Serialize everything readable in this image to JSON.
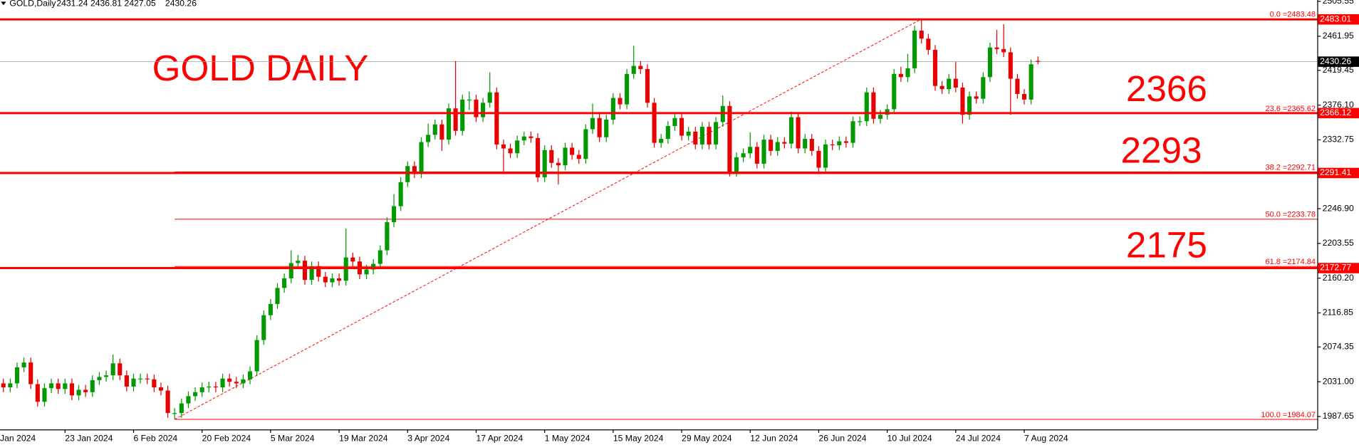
{
  "chart_data": {
    "type": "candlestick",
    "symbol": "GOLD,Daily",
    "categories": [
      "Jan 2024",
      null,
      null,
      null,
      null,
      null,
      null,
      null,
      null,
      null,
      "23 Jan 2024",
      null,
      null,
      null,
      null,
      null,
      null,
      null,
      null,
      null,
      "6 Feb 2024",
      null,
      null,
      null,
      null,
      null,
      null,
      null,
      null,
      null,
      "20 Feb 2024",
      null,
      null,
      null,
      null,
      null,
      null,
      null,
      null,
      null,
      "5 Mar 2024",
      null,
      null,
      null,
      null,
      null,
      null,
      null,
      null,
      null,
      "19 Mar 2024",
      null,
      null,
      null,
      null,
      null,
      null,
      null,
      null,
      null,
      "3 Apr 2024",
      null,
      null,
      null,
      null,
      null,
      null,
      null,
      null,
      null,
      "17 Apr 2024",
      null,
      null,
      null,
      null,
      null,
      null,
      null,
      null,
      null,
      "1 May 2024",
      null,
      null,
      null,
      null,
      null,
      null,
      null,
      null,
      null,
      "15 May 2024",
      null,
      null,
      null,
      null,
      null,
      null,
      null,
      null,
      null,
      "29 May 2024",
      null,
      null,
      null,
      null,
      null,
      null,
      null,
      null,
      null,
      "12 Jun 2024",
      null,
      null,
      null,
      null,
      null,
      null,
      null,
      null,
      null,
      "26 Jun 2024",
      null,
      null,
      null,
      null,
      null,
      null,
      null,
      null,
      null,
      "10 Jul 2024",
      null,
      null,
      null,
      null,
      null,
      null,
      null,
      null,
      null,
      "24 Jul 2024",
      null,
      null,
      null,
      null,
      null,
      null,
      null,
      null,
      null,
      "7 Aug 2024",
      null,
      null
    ],
    "open": [
      2028,
      2029,
      2024,
      2029,
      2049,
      2055,
      2028,
      2006,
      2023,
      2029,
      2022,
      2029,
      2014,
      2021,
      2018,
      2033,
      2037,
      2039,
      2054,
      2039,
      2025,
      2035,
      2035,
      2034,
      2024,
      2020,
      1992,
      1992,
      2004,
      2013,
      2018,
      2024,
      2025,
      2024,
      2035,
      2031,
      2029,
      2034,
      2044,
      2083,
      2114,
      2128,
      2148,
      2160,
      2179,
      2182,
      2158,
      2175,
      2162,
      2155,
      2160,
      2157,
      2186,
      2181,
      2165,
      2171,
      2178,
      2195,
      2230,
      2250,
      2280,
      2300,
      2291,
      2330,
      2339,
      2352,
      2333,
      2372,
      2344,
      2383,
      2383,
      2361,
      2379,
      2392,
      2327,
      2322,
      2316,
      2332,
      2337,
      2335,
      2286,
      2320,
      2304,
      2301,
      2323,
      2314,
      2309,
      2346,
      2360,
      2336,
      2358,
      2385,
      2377,
      2415,
      2425,
      2421,
      2379,
      2329,
      2334,
      2350,
      2360,
      2338,
      2343,
      2327,
      2349,
      2327,
      2355,
      2375,
      2293,
      2311,
      2316,
      2324,
      2303,
      2333,
      2319,
      2330,
      2328,
      2361,
      2322,
      2334,
      2319,
      2298,
      2327,
      2326,
      2331,
      2329,
      2356,
      2356,
      2392,
      2359,
      2364,
      2371,
      2415,
      2411,
      2422,
      2469,
      2459,
      2445,
      2400,
      2396,
      2409,
      2398,
      2364,
      2387,
      2384,
      2411,
      2448,
      2446,
      2442,
      2409,
      2390,
      2383,
      2431.24
    ],
    "high": [
      2035,
      2035,
      2035,
      2055,
      2061,
      2061,
      2034,
      2029,
      2035,
      2035,
      2035,
      2035,
      2027,
      2027,
      2039,
      2043,
      2045,
      2065,
      2060,
      2045,
      2041,
      2041,
      2041,
      2040,
      2030,
      2026,
      1998,
      2010,
      2019,
      2024,
      2030,
      2031,
      2031,
      2041,
      2041,
      2037,
      2040,
      2050,
      2089,
      2120,
      2134,
      2154,
      2166,
      2195,
      2189,
      2188,
      2181,
      2181,
      2168,
      2166,
      2166,
      2222,
      2192,
      2187,
      2177,
      2184,
      2201,
      2236,
      2265,
      2286,
      2306,
      2306,
      2336,
      2353,
      2358,
      2358,
      2378,
      2431,
      2389,
      2393,
      2389,
      2385,
      2417,
      2398,
      2333,
      2328,
      2338,
      2343,
      2343,
      2341,
      2326,
      2326,
      2310,
      2329,
      2329,
      2320,
      2352,
      2378,
      2366,
      2364,
      2391,
      2391,
      2421,
      2450,
      2431,
      2427,
      2385,
      2340,
      2356,
      2366,
      2366,
      2349,
      2349,
      2355,
      2355,
      2361,
      2388,
      2381,
      2317,
      2322,
      2342,
      2330,
      2339,
      2339,
      2336,
      2336,
      2368,
      2367,
      2340,
      2340,
      2325,
      2333,
      2333,
      2337,
      2337,
      2362,
      2362,
      2398,
      2398,
      2370,
      2377,
      2421,
      2424,
      2440,
      2475,
      2483.48,
      2465,
      2451,
      2406,
      2415,
      2430,
      2404,
      2393,
      2393,
      2417,
      2454,
      2470,
      2477,
      2448,
      2415,
      2396,
      2433,
      2436.81
    ],
    "low": [
      2022,
      2018,
      2018,
      2023,
      2043,
      2022,
      2000,
      2000,
      2017,
      2016,
      2016,
      2008,
      2008,
      2012,
      2012,
      2027,
      2031,
      2033,
      2033,
      2019,
      2019,
      2029,
      2028,
      2018,
      2014,
      1986,
      1984.07,
      1986,
      1998,
      2007,
      2012,
      2018,
      2018,
      2018,
      2025,
      2023,
      2023,
      2028,
      2038,
      2077,
      2108,
      2122,
      2142,
      2154,
      2173,
      2152,
      2152,
      2156,
      2149,
      2149,
      2151,
      2151,
      2175,
      2159,
      2159,
      2165,
      2172,
      2189,
      2224,
      2244,
      2274,
      2285,
      2285,
      2324,
      2333,
      2319,
      2327,
      2338,
      2338,
      2370,
      2355,
      2355,
      2373,
      2321,
      2292,
      2310,
      2310,
      2326,
      2329,
      2280,
      2280,
      2298,
      2277,
      2295,
      2308,
      2303,
      2303,
      2340,
      2330,
      2330,
      2352,
      2371,
      2371,
      2409,
      2415,
      2373,
      2323,
      2323,
      2328,
      2344,
      2332,
      2332,
      2321,
      2321,
      2321,
      2321,
      2349,
      2287,
      2287,
      2305,
      2310,
      2297,
      2297,
      2313,
      2313,
      2322,
      2322,
      2316,
      2316,
      2313,
      2292,
      2292,
      2320,
      2320,
      2323,
      2323,
      2350,
      2350,
      2353,
      2353,
      2358,
      2365,
      2405,
      2405,
      2416,
      2453,
      2439,
      2394,
      2390,
      2390,
      2392,
      2353,
      2358,
      2378,
      2378,
      2405,
      2440,
      2436,
      2364,
      2384,
      2377,
      2377,
      2427.05
    ],
    "close": [
      2029,
      2024,
      2029,
      2049,
      2055,
      2028,
      2006,
      2023,
      2029,
      2022,
      2029,
      2014,
      2021,
      2018,
      2033,
      2037,
      2039,
      2054,
      2039,
      2025,
      2035,
      2035,
      2034,
      2024,
      2020,
      1992,
      1992,
      2004,
      2013,
      2018,
      2024,
      2025,
      2024,
      2035,
      2031,
      2029,
      2034,
      2044,
      2083,
      2114,
      2128,
      2148,
      2160,
      2179,
      2182,
      2158,
      2175,
      2162,
      2155,
      2160,
      2157,
      2186,
      2181,
      2165,
      2171,
      2178,
      2195,
      2230,
      2250,
      2280,
      2300,
      2291,
      2330,
      2339,
      2352,
      2333,
      2372,
      2344,
      2383,
      2383,
      2361,
      2379,
      2392,
      2327,
      2322,
      2316,
      2332,
      2337,
      2335,
      2286,
      2320,
      2304,
      2301,
      2323,
      2314,
      2309,
      2346,
      2360,
      2336,
      2358,
      2385,
      2377,
      2415,
      2425,
      2421,
      2379,
      2329,
      2334,
      2350,
      2360,
      2338,
      2343,
      2327,
      2349,
      2327,
      2355,
      2375,
      2293,
      2311,
      2316,
      2324,
      2303,
      2333,
      2319,
      2330,
      2328,
      2361,
      2322,
      2334,
      2319,
      2298,
      2327,
      2326,
      2331,
      2329,
      2356,
      2356,
      2392,
      2359,
      2364,
      2371,
      2415,
      2411,
      2422,
      2469,
      2459,
      2445,
      2400,
      2396,
      2409,
      2398,
      2364,
      2387,
      2384,
      2411,
      2448,
      2446,
      2442,
      2409,
      2390,
      2383,
      2427,
      2430.26
    ],
    "up_color": "#009900",
    "down_color": "#e60000",
    "level_color": "#ff0000",
    "ylim": [
      1971.5,
      2507.2
    ],
    "yticks": [
      1987.65,
      {
        "value": 2031,
        "label": "2031.00"
      },
      2074.35,
      2116.85,
      {
        "value": 2160.2,
        "label": "2160.20"
      },
      2203.55,
      {
        "value": 2246.9,
        "label": "2246.90"
      },
      2332.75,
      {
        "value": 2376.1,
        "label": "2376.10"
      },
      2419.45,
      2461.95,
      2505.55
    ],
    "levels": [
      2483.01,
      2366.12,
      2291.41,
      2172.77
    ],
    "fib_levels": [
      {
        "value": 2483.48,
        "label": "0.0 =2483.48"
      },
      {
        "value": 2365.62,
        "label": "23.6 =2365.62"
      },
      {
        "value": 2292.71,
        "label": "38.2 =2292.71"
      },
      {
        "value": 2233.78,
        "label": "50.0 =2233.78"
      },
      {
        "value": 2174.84,
        "label": "61.8 =2174.84"
      },
      {
        "value": 1984.07,
        "label": "100.0 =1984.07"
      }
    ],
    "title": "GOLD DAILY",
    "annotations": [
      "2366",
      "2293",
      "2175"
    ],
    "grid": false
  }
}
